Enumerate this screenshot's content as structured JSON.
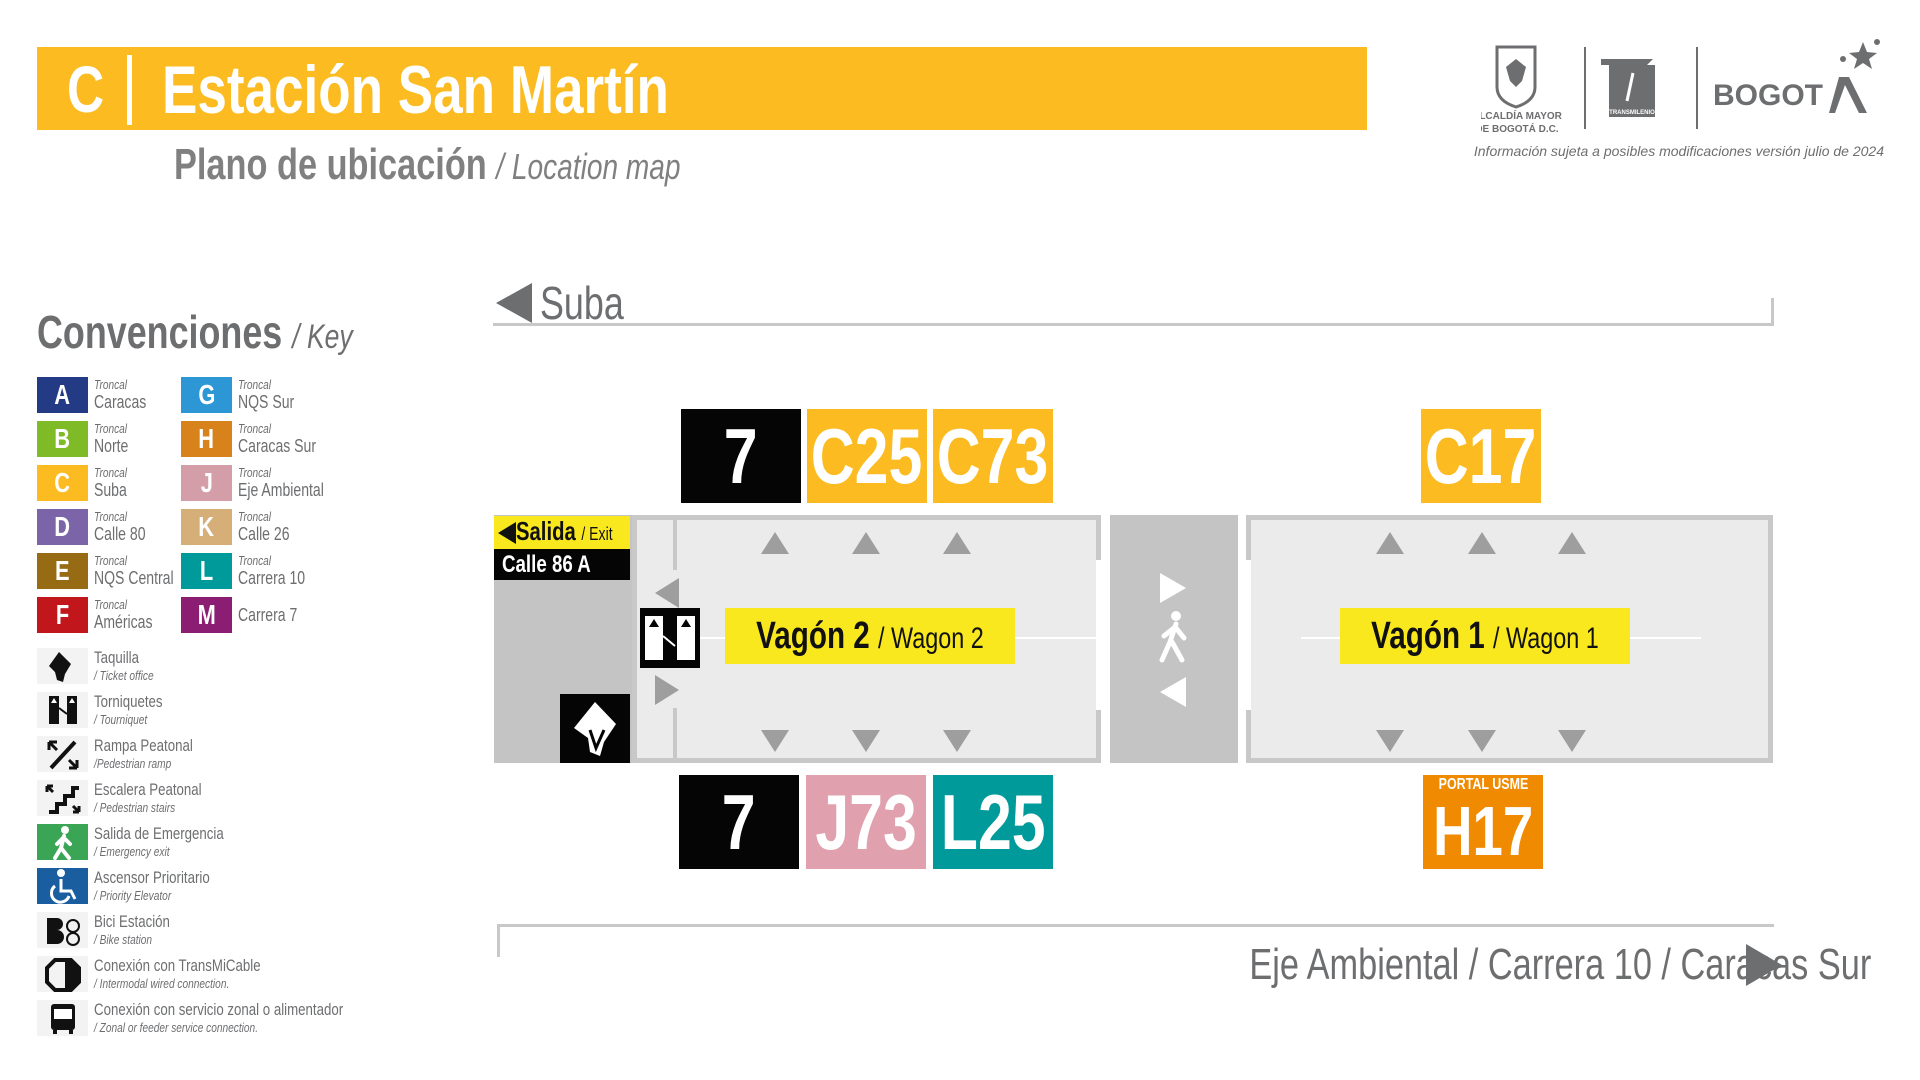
{
  "header": {
    "line_letter": "C",
    "title": "Estación San Martín",
    "subtitle": "Plano de ubicación",
    "subtitle_en": "/ Location map",
    "disclaimer": "Información sujeta a posibles modificaciones versión julio de 2024",
    "logos": {
      "alcaldia": "ALCALDÍA MAYOR DE BOGOTÁ D.C.",
      "transmilenio": "TRANSMILENIO",
      "bogota": "BOGOTA"
    }
  },
  "key": {
    "title": "Convenciones",
    "title_en": "/ Key",
    "troncales": [
      {
        "letter": "A",
        "prefix": "Troncal",
        "name": "Caracas",
        "color": "#233a84"
      },
      {
        "letter": "B",
        "prefix": "Troncal",
        "name": "Norte",
        "color": "#7fba27"
      },
      {
        "letter": "C",
        "prefix": "Troncal",
        "name": "Suba",
        "color": "#fbbb21"
      },
      {
        "letter": "D",
        "prefix": "Troncal",
        "name": "Calle 80",
        "color": "#7b65a8"
      },
      {
        "letter": "E",
        "prefix": "Troncal",
        "name": "NQS Central",
        "color": "#976a14"
      },
      {
        "letter": "F",
        "prefix": "Troncal",
        "name": "Américas",
        "color": "#c1161c"
      },
      {
        "letter": "G",
        "prefix": "Troncal",
        "name": "NQS Sur",
        "color": "#2d97d6"
      },
      {
        "letter": "H",
        "prefix": "Troncal",
        "name": "Caracas Sur",
        "color": "#d7821a"
      },
      {
        "letter": "J",
        "prefix": "Troncal",
        "name": "Eje Ambiental",
        "color": "#d49ea9"
      },
      {
        "letter": "K",
        "prefix": "Troncal",
        "name": "Calle 26",
        "color": "#d5ae78"
      },
      {
        "letter": "L",
        "prefix": "Troncal",
        "name": "Carrera 10",
        "color": "#009a9a"
      },
      {
        "letter": "M",
        "prefix": "",
        "name": "Carrera 7",
        "color": "#8b1e73"
      }
    ],
    "icons": [
      {
        "icon": "ticket-office-icon",
        "label": "Taquilla",
        "label_en": "/ Ticket office"
      },
      {
        "icon": "turnstile-icon",
        "label": "Torniquetes",
        "label_en": "/ Tourniquet"
      },
      {
        "icon": "ramp-icon",
        "label": "Rampa Peatonal",
        "label_en": "/Pedestrian ramp"
      },
      {
        "icon": "stairs-icon",
        "label": "Escalera Peatonal",
        "label_en": "/ Pedestrian stairs"
      },
      {
        "icon": "emergency-exit-icon",
        "label": "Salida de Emergencia",
        "label_en": "/ Emergency exit",
        "color": "#3aa655"
      },
      {
        "icon": "wheelchair-icon",
        "label": "Ascensor Prioritario",
        "label_en": "/ Priority Elevator",
        "color": "#1a5ea0"
      },
      {
        "icon": "bike-station-icon",
        "label": "Bici Estación",
        "label_en": "/ Bike station"
      },
      {
        "icon": "transmicable-icon",
        "label": "Conexión con TransMiCable",
        "label_en": "/ Intermodal wired connection."
      },
      {
        "icon": "bus-icon",
        "label": "Conexión con servicio zonal o alimentador",
        "label_en": "/ Zonal or feeder service connection."
      }
    ]
  },
  "map": {
    "direction_top": "Suba",
    "direction_bottom": "Eje Ambiental / Carrera 10 / Caracas Sur",
    "exit": {
      "label": "Salida",
      "label_en": "/ Exit",
      "street": "Calle 86 A"
    },
    "wagon2": {
      "label": "Vagón 2",
      "label_en": "/ Wagon 2"
    },
    "wagon1": {
      "label": "Vagón 1",
      "label_en": "/ Wagon 1"
    },
    "routes_top_w2": [
      {
        "code": "7",
        "color": "#050505"
      },
      {
        "code": "C25",
        "color": "#fbbb21"
      },
      {
        "code": "C73",
        "color": "#fbbb21"
      }
    ],
    "routes_top_w1": [
      {
        "code": "C17",
        "color": "#fbbb21"
      }
    ],
    "routes_bottom_w2": [
      {
        "code": "7",
        "color": "#050505"
      },
      {
        "code": "J73",
        "color": "#e0a0ad"
      },
      {
        "code": "L25",
        "color": "#009a9a"
      }
    ],
    "routes_bottom_w1": [
      {
        "code": "H17",
        "tag": "PORTAL USME",
        "color": "#f08a00"
      }
    ]
  }
}
